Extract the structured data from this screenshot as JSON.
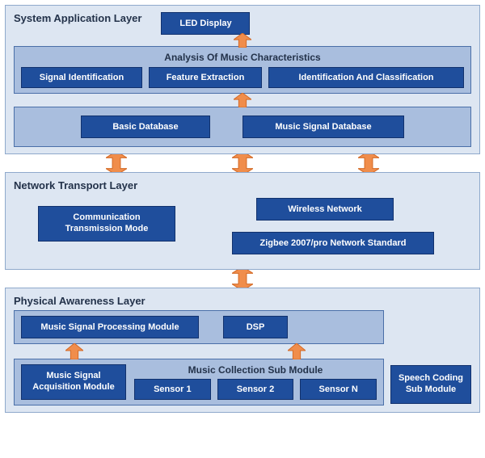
{
  "colors": {
    "layer_bg": "#dde6f2",
    "layer_border": "#8fa9cc",
    "panel_bg": "#a9bede",
    "panel_border": "#4a6fa8",
    "box_bg": "#1f4e9c",
    "box_border": "#11316d",
    "box_text": "#ffffff",
    "text_dark": "#23324a",
    "arrow_fill": "#f08d4b",
    "arrow_stroke": "#d46a26"
  },
  "fonts": {
    "layer_title": 13,
    "panel_title": 12,
    "box_label": 11
  },
  "layers": {
    "app": {
      "title": "System Application Layer",
      "led": "LED Display",
      "analysis": {
        "title": "Analysis Of Music Characteristics",
        "items": [
          "Signal Identification",
          "Feature Extraction",
          "Identification And Classification"
        ]
      },
      "db": {
        "basic": "Basic Database",
        "music": "Music Signal Database"
      }
    },
    "net": {
      "title": "Network Transport Layer",
      "comm": "Communication\nTransmission Mode",
      "wireless": "Wireless Network",
      "zigbee": "Zigbee 2007/pro Network Standard"
    },
    "phy": {
      "title": "Physical Awareness Layer",
      "spm": {
        "msp": "Music Signal Processing Module",
        "dsp": "DSP"
      },
      "msc": {
        "title": "Music Collection Sub Module",
        "acq": "Music Signal\nAcquisition Module",
        "sensors": [
          "Sensor 1",
          "Sensor 2",
          "Sensor N"
        ]
      },
      "speech": "Speech Coding\nSub Module"
    }
  }
}
